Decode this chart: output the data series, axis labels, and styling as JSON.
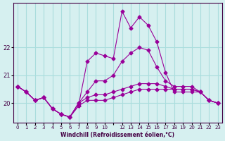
{
  "xlabel": "Windchill (Refroidissement éolien,°C)",
  "background_color": "#d6f0f0",
  "grid_color": "#aadddd",
  "line_color": "#990099",
  "hours": [
    0,
    1,
    2,
    3,
    4,
    5,
    6,
    7,
    8,
    9,
    10,
    11,
    12,
    13,
    14,
    15,
    16,
    17,
    18,
    19,
    20,
    21,
    22,
    23
  ],
  "temp": [
    20.6,
    20.4,
    20.1,
    20.2,
    19.8,
    19.6,
    19.5,
    19.9,
    21.5,
    21.8,
    21.7,
    21.6,
    23.3,
    22.7,
    23.1,
    22.8,
    22.2,
    21.1,
    20.4,
    20.4,
    20.4,
    20.4,
    20.1,
    20.0
  ],
  "windchill": [
    20.6,
    20.4,
    20.1,
    20.2,
    19.8,
    19.6,
    19.5,
    19.9,
    20.1,
    20.1,
    20.1,
    20.2,
    20.3,
    20.4,
    20.5,
    20.5,
    20.5,
    20.5,
    20.5,
    20.5,
    20.5,
    20.4,
    20.1,
    20.0
  ],
  "feels_like": [
    20.6,
    20.4,
    20.1,
    20.2,
    19.8,
    19.6,
    19.5,
    20.0,
    20.2,
    20.3,
    20.3,
    20.4,
    20.5,
    20.6,
    20.7,
    20.7,
    20.7,
    20.6,
    20.5,
    20.5,
    20.5,
    20.4,
    20.1,
    20.0
  ],
  "heat_index": [
    20.6,
    20.4,
    20.1,
    20.2,
    19.8,
    19.6,
    19.5,
    20.0,
    20.4,
    20.8,
    20.8,
    21.0,
    21.5,
    21.8,
    22.0,
    21.9,
    21.3,
    20.8,
    20.6,
    20.6,
    20.6,
    20.4,
    20.1,
    20.0
  ],
  "ylim": [
    19.3,
    23.6
  ],
  "yticks": [
    20,
    21,
    22
  ],
  "xtick_labels": [
    "0",
    "1",
    "2",
    "3",
    "4",
    "5",
    "6",
    "7",
    "8",
    "9",
    "10",
    "",
    "12",
    "13",
    "14",
    "15",
    "16",
    "17",
    "18",
    "19",
    "20",
    "21",
    "22",
    "23"
  ]
}
